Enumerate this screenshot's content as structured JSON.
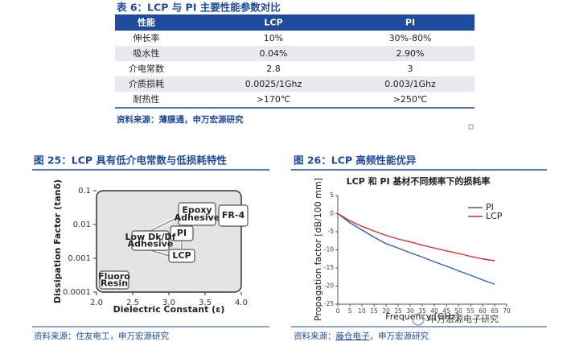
{
  "table": {
    "title": "表 6：LCP 与 PI 主要性能参数对比",
    "header": [
      "性能",
      "LCP",
      "PI"
    ],
    "rows": [
      [
        "伸长率",
        "10%",
        "30%-80%"
      ],
      [
        "吸水性",
        "0.04%",
        "2.90%"
      ],
      [
        "介电常数",
        "2.8",
        "3"
      ],
      [
        "介质损耗",
        "0.0025/1Ghz",
        "0.003/1Ghz"
      ],
      [
        "耐热性",
        ">170℃",
        ">250℃"
      ]
    ],
    "source": "资料来源：薄膜通，申万宏源研究"
  },
  "figure25": {
    "title": "图 25：LCP 具有低介电常数与低损耗特性",
    "source": "资料来源：住友电工，申万宏源研究",
    "chart_data": {
      "type": "labeled-regions",
      "xlabel": "Dielectric Constant (ε)",
      "ylabel": "Dissipation Factor (tanδ)",
      "xlim": [
        2,
        4
      ],
      "xticks": [
        {
          "value": 2,
          "label": "2.0"
        },
        2.5,
        {
          "value": 3,
          "label": "3.0"
        },
        3.5,
        {
          "value": 4,
          "label": "4.0"
        }
      ],
      "ylim": [
        0.0001,
        0.1
      ],
      "yticks": [
        0.1,
        0.01,
        0.001,
        0.0001
      ],
      "log_y": true,
      "labels": [
        {
          "lines": [
            "Epoxy",
            "Adhesive"
          ]
        },
        {
          "lines": [
            "FR-4"
          ]
        },
        {
          "lines": [
            "PI"
          ]
        },
        {
          "lines": [
            "Low Dk/Df",
            "Adhesive"
          ]
        },
        {
          "lines": [
            "LCP"
          ]
        },
        {
          "lines": [
            "Fluoro",
            "Resin"
          ]
        }
      ]
    }
  },
  "figure26": {
    "title": "图 26：LCP 高频性能优异",
    "source_prefix": "资料来源：",
    "source_org": "藤仓电子",
    "source_suffix": "，申万宏源研究",
    "watermark": "申万宏源电子研究",
    "chart_data": {
      "type": "line",
      "title": "LCP 和 PI 基材不同频率下的损耗率",
      "xlabel": "Frequency [GHz]",
      "ylabel": "Propagation factor [dB/100 mm]",
      "xlim": [
        0,
        70
      ],
      "xticks": [
        0,
        5,
        10,
        15,
        20,
        25,
        30,
        35,
        40,
        45,
        50,
        55,
        60,
        65,
        70
      ],
      "ylim": [
        -25,
        5
      ],
      "yticks": [
        5,
        0,
        -5,
        -10,
        -15,
        -20,
        -25
      ],
      "legend": "upper right",
      "x": [
        0,
        5,
        10,
        15,
        20,
        25,
        30,
        35,
        40,
        45,
        50,
        55,
        60,
        65
      ],
      "series": [
        {
          "name": "PI",
          "color": "#2f5fb3",
          "values": [
            0,
            -2.5,
            -4.5,
            -6.5,
            -8.3,
            -9.5,
            -10.8,
            -12,
            -13.3,
            -14.5,
            -15.8,
            -17,
            -18.3,
            -19.5
          ]
        },
        {
          "name": "LCP",
          "color": "#d03030",
          "values": [
            0,
            -2,
            -3.5,
            -4.8,
            -6,
            -7,
            -7.8,
            -8.7,
            -9.5,
            -10.3,
            -11,
            -11.8,
            -12.5,
            -13
          ]
        }
      ]
    }
  }
}
